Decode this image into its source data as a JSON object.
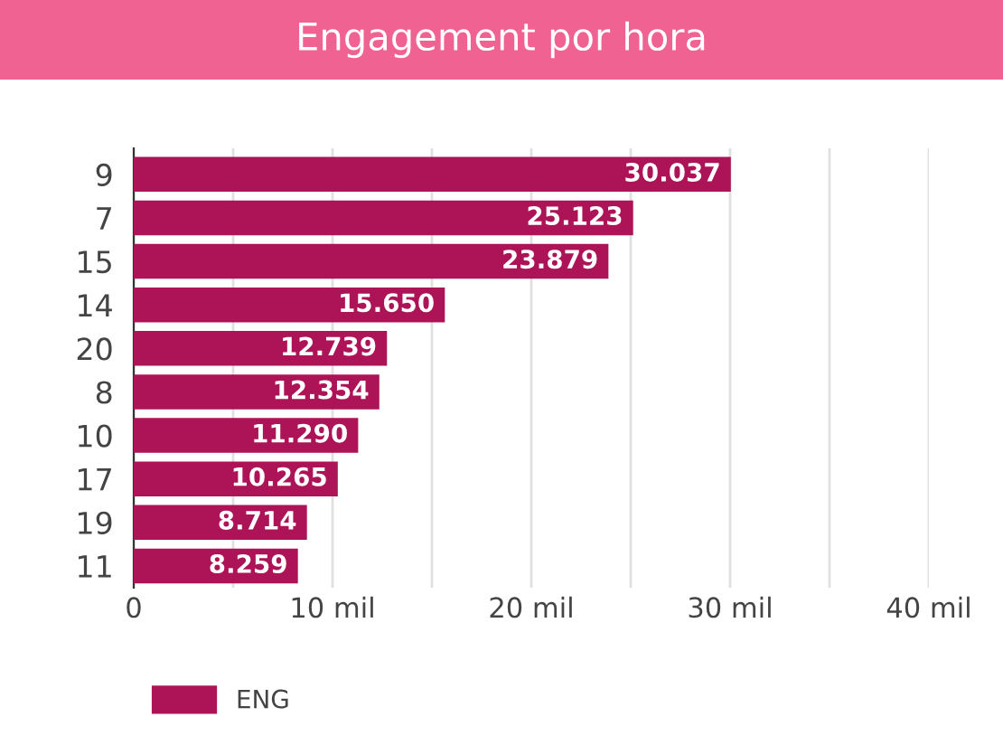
{
  "chart_data": {
    "type": "bar",
    "orientation": "horizontal",
    "title": "Engagement por hora",
    "categories": [
      "9",
      "7",
      "15",
      "14",
      "20",
      "8",
      "10",
      "17",
      "19",
      "11"
    ],
    "series": [
      {
        "name": "ENG",
        "color": "#ad1457",
        "values": [
          30.037,
          25.123,
          23.879,
          15.65,
          12.739,
          12.354,
          11.29,
          10.265,
          8.714,
          8.259
        ],
        "value_labels": [
          "30.037",
          "25.123",
          "23.879",
          "15.650",
          "12.739",
          "12.354",
          "11.290",
          "10.265",
          "8.714",
          "8.259"
        ]
      }
    ],
    "xlim": [
      0,
      40
    ],
    "xticks": [
      0,
      {
        "value": 5,
        "label": null
      },
      {
        "value": 10,
        "label": "10 mil"
      },
      {
        "value": 15,
        "label": null
      },
      {
        "value": 20,
        "label": "20 mil"
      },
      {
        "value": 25,
        "label": null
      },
      {
        "value": 30,
        "label": "30 mil"
      },
      {
        "value": 35,
        "label": null
      },
      {
        "value": 40,
        "label": "40 mil"
      }
    ],
    "grid": "x",
    "legend": "bottom"
  }
}
